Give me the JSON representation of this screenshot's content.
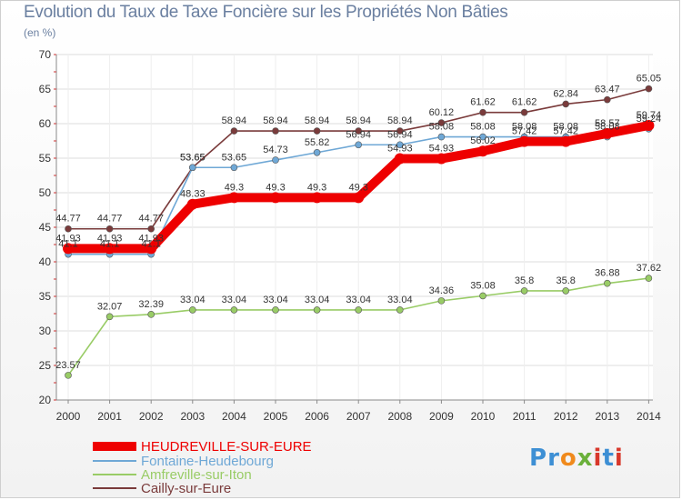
{
  "title": "Evolution du Taux de Taxe Foncière sur les Propriétés Non Bâties",
  "unit_label": "(en %)",
  "logo_text": "Proxiti",
  "colors": {
    "grid": "#dddddd",
    "axis": "#8a8a8a"
  },
  "chart_data": {
    "type": "line",
    "title": "Evolution du Taux de Taxe Foncière sur les Propriétés Non Bâties",
    "ylabel": "(en %)",
    "xlabel": "",
    "ylim": [
      20,
      70
    ],
    "yticks": [
      20,
      25,
      30,
      35,
      40,
      45,
      50,
      55,
      60,
      65,
      70
    ],
    "grid": true,
    "legend_position": "bottom-left",
    "x": [
      "2000",
      "2001",
      "2002",
      "2003",
      "2004",
      "2005",
      "2006",
      "2007",
      "2008",
      "2009",
      "2010",
      "2011",
      "2012",
      "2013",
      "2014"
    ],
    "series": [
      {
        "name": "HEUDREVILLE-SUR-EURE",
        "color": "#ee0000",
        "values": [
          41.93,
          41.93,
          41.93,
          48.33,
          49.3,
          49.3,
          49.3,
          49.3,
          54.93,
          54.93,
          56.02,
          57.42,
          57.42,
          58.57,
          59.74
        ],
        "labels": [
          "41.93",
          "41.93",
          "41.93",
          "48.33",
          "49.3",
          "49.3",
          "49.3",
          "49.3",
          "54.93",
          "54.93",
          "56.02",
          "57.42",
          "57.42",
          "58.57",
          "59.74"
        ]
      },
      {
        "name": "Fontaine-Heudebourg",
        "color": "#6fa8d6",
        "values": [
          41.1,
          41.1,
          41.1,
          53.65,
          53.65,
          54.73,
          55.82,
          56.94,
          56.94,
          58.08,
          58.08,
          58.08,
          58.08,
          58.08,
          59.24
        ],
        "labels": [
          "41.1",
          "41.1",
          "41.1",
          "53.65",
          "53.65",
          "54.73",
          "55.82",
          "56.94",
          "56.94",
          "58.08",
          "58.08",
          "58.08",
          "58.08",
          "58.08",
          "59.24"
        ]
      },
      {
        "name": "Amfreville-sur-Iton",
        "color": "#99cc66",
        "values": [
          23.57,
          32.07,
          32.39,
          33.04,
          33.04,
          33.04,
          33.04,
          33.04,
          33.04,
          34.36,
          35.08,
          35.8,
          35.8,
          36.88,
          37.62
        ],
        "labels": [
          "23.57",
          "32.07",
          "32.39",
          "33.04",
          "33.04",
          "33.04",
          "33.04",
          "33.04",
          "33.04",
          "34.36",
          "35.08",
          "35.8",
          "35.8",
          "36.88",
          "37.62"
        ]
      },
      {
        "name": "Cailly-sur-Eure",
        "color": "#7a3b3b",
        "values": [
          44.77,
          44.77,
          44.77,
          53.65,
          58.94,
          58.94,
          58.94,
          58.94,
          58.94,
          60.12,
          61.62,
          61.62,
          62.84,
          63.47,
          65.05
        ],
        "labels": [
          "44.77",
          "44.77",
          "44.77",
          "53.65",
          "58.94",
          "58.94",
          "58.94",
          "58.94",
          "58.94",
          "60.12",
          "61.62",
          "61.62",
          "62.84",
          "63.47",
          "65.05"
        ]
      }
    ]
  }
}
